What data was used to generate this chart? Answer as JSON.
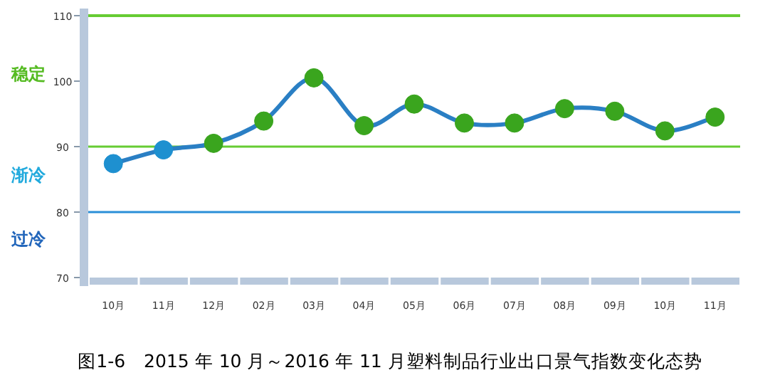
{
  "chart_data": {
    "type": "line",
    "title": "图1-6　2015 年 10 月～2016 年 11 月塑料制品行业出口景气指数变化态势",
    "categories": [
      "10月",
      "11月",
      "12月",
      "02月",
      "03月",
      "04月",
      "05月",
      "06月",
      "07月",
      "08月",
      "09月",
      "10月",
      "11月"
    ],
    "series": [
      {
        "color": "#2a7fc4",
        "values": [
          87.4,
          89.5,
          90.5,
          93.9,
          100.5,
          93.2,
          96.5,
          93.6,
          93.6,
          95.8,
          95.4,
          92.4,
          94.5
        ],
        "colors": [
          "#1e90d0",
          "#1e90d0",
          "#3aa51e",
          "#3aa51e",
          "#3aa51e",
          "#3aa51e",
          "#3aa51e",
          "#3aa51e",
          "#3aa51e",
          "#3aa51e",
          "#3aa51e",
          "#3aa51e",
          "#3aa51e"
        ]
      }
    ],
    "ylim": [
      70,
      110
    ],
    "yticks": [
      70,
      80,
      90,
      100,
      110
    ],
    "marker": "circle",
    "ref_lines": [
      {
        "axis": "y",
        "value": 110,
        "color": "#66cc33"
      },
      {
        "axis": "y",
        "value": 90,
        "color": "#66cc33"
      },
      {
        "axis": "y",
        "value": 80,
        "color": "#2a8fd8"
      }
    ],
    "annotations": [
      "稳定",
      "渐冷",
      "过冷"
    ]
  }
}
